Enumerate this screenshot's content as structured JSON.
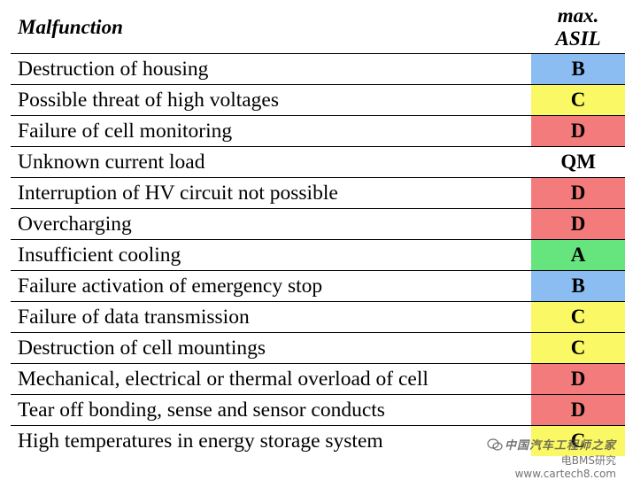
{
  "header": {
    "malfunction": "Malfunction",
    "asil_line1": "max.",
    "asil_line2": "ASIL"
  },
  "rows": [
    {
      "malfunction": "Destruction of housing",
      "asil": "B"
    },
    {
      "malfunction": "Possible threat of high voltages",
      "asil": "C"
    },
    {
      "malfunction": "Failure of cell monitoring",
      "asil": "D"
    },
    {
      "malfunction": "Unknown current load",
      "asil": "QM"
    },
    {
      "malfunction": "Interruption of HV circuit not possible",
      "asil": "D"
    },
    {
      "malfunction": "Overcharging",
      "asil": "D"
    },
    {
      "malfunction": "Insufficient cooling",
      "asil": "A"
    },
    {
      "malfunction": "Failure activation of emergency stop",
      "asil": "B"
    },
    {
      "malfunction": "Failure of data transmission",
      "asil": "C"
    },
    {
      "malfunction": "Destruction of cell mountings",
      "asil": "C"
    },
    {
      "malfunction": "Mechanical, electrical or thermal overload of cell",
      "asil": "D"
    },
    {
      "malfunction": "Tear off bonding, sense and sensor conducts",
      "asil": "D"
    },
    {
      "malfunction": "High temperatures in energy storage system",
      "asil": "C"
    }
  ],
  "asil_colors": {
    "A": "#66e57f",
    "B": "#8bbdf2",
    "C": "#fbf866",
    "D": "#f47b7b",
    "QM": "#ffffff"
  },
  "watermark": {
    "line1": "中国汽车工程师之家",
    "line2": "电BMS研究 www.cartech8.com"
  }
}
